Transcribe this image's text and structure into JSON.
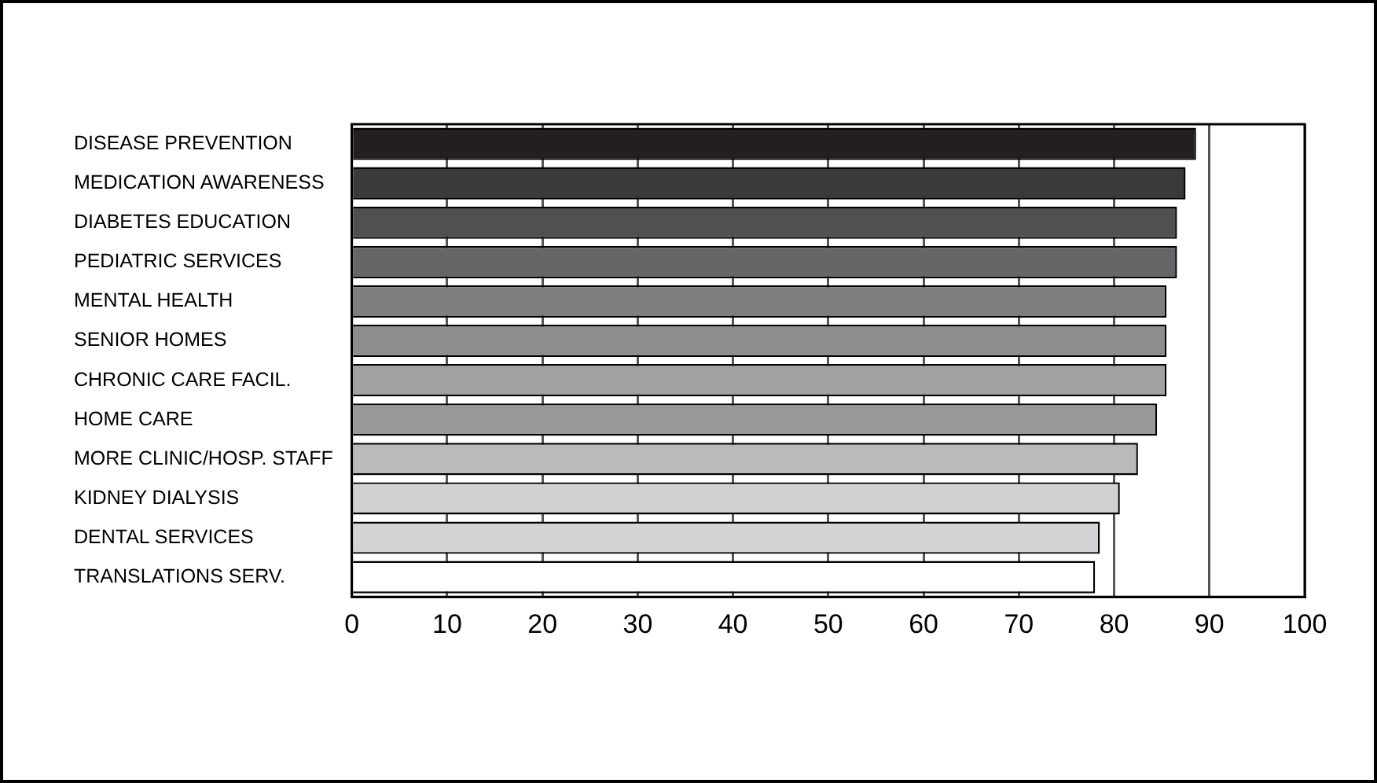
{
  "chart_data": {
    "type": "bar",
    "orientation": "horizontal",
    "categories": [
      "DISEASE PREVENTION",
      "MEDICATION AWARENESS",
      "DIABETES EDUCATION",
      "PEDIATRIC SERVICES",
      "MENTAL HEALTH",
      "SENIOR HOMES",
      "CHRONIC CARE FACIL.",
      "HOME CARE",
      "MORE CLINIC/HOSP. STAFF",
      "KIDNEY DIALYSIS",
      "DENTAL SERVICES",
      "TRANSLATIONS SERV."
    ],
    "values": [
      88.6,
      87.5,
      86.6,
      86.6,
      85.5,
      85.5,
      85.5,
      84.5,
      82.5,
      80.6,
      78.5,
      78
    ],
    "colors": [
      "#231f20",
      "#3a3a3a",
      "#505050",
      "#666668",
      "#7d7e80",
      "#8d8e90",
      "#a0a1a3",
      "#98999b",
      "#b9babc",
      "#d0d1d3",
      "#d4d4d6",
      "#ffffff"
    ],
    "xlim": [
      0,
      100
    ],
    "xticks": [
      0,
      10,
      20,
      30,
      40,
      50,
      60,
      70,
      80,
      90,
      100
    ],
    "grid": "x"
  }
}
